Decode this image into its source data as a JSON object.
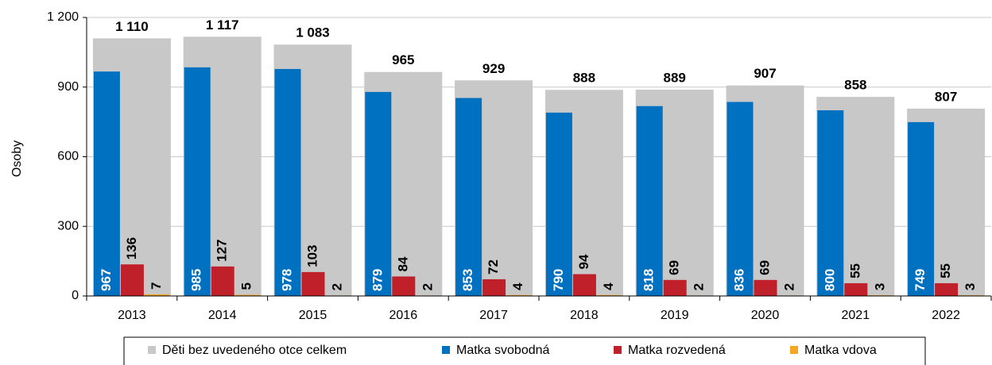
{
  "chart_data": {
    "type": "bar",
    "y_label": "Osoby",
    "categories": [
      "2013",
      "2014",
      "2015",
      "2016",
      "2017",
      "2018",
      "2019",
      "2020",
      "2021",
      "2022"
    ],
    "series": [
      {
        "name": "Děti bez uvedeného otce celkem",
        "color": "#c8c8c8",
        "values": [
          1110,
          1117,
          1083,
          965,
          929,
          888,
          889,
          907,
          858,
          807
        ],
        "value_labels": [
          "1 110",
          "1 117",
          "1 083",
          "965",
          "929",
          "888",
          "889",
          "907",
          "858",
          "807"
        ]
      },
      {
        "name": "Matka svobodná",
        "color": "#0070c0",
        "values": [
          967,
          985,
          978,
          879,
          853,
          790,
          818,
          836,
          800,
          749
        ]
      },
      {
        "name": "Matka rozvedená",
        "color": "#c0202a",
        "values": [
          136,
          127,
          103,
          84,
          72,
          94,
          69,
          69,
          55,
          55
        ]
      },
      {
        "name": "Matka vdova",
        "color": "#f5a623",
        "values": [
          7,
          5,
          2,
          2,
          4,
          4,
          2,
          2,
          3,
          3
        ]
      }
    ],
    "ylim": [
      0,
      1200
    ],
    "yticks": [
      0,
      300,
      600,
      900,
      {
        "value": 1200,
        "label": "1 200"
      }
    ],
    "grid": true,
    "legend": "bottom"
  }
}
